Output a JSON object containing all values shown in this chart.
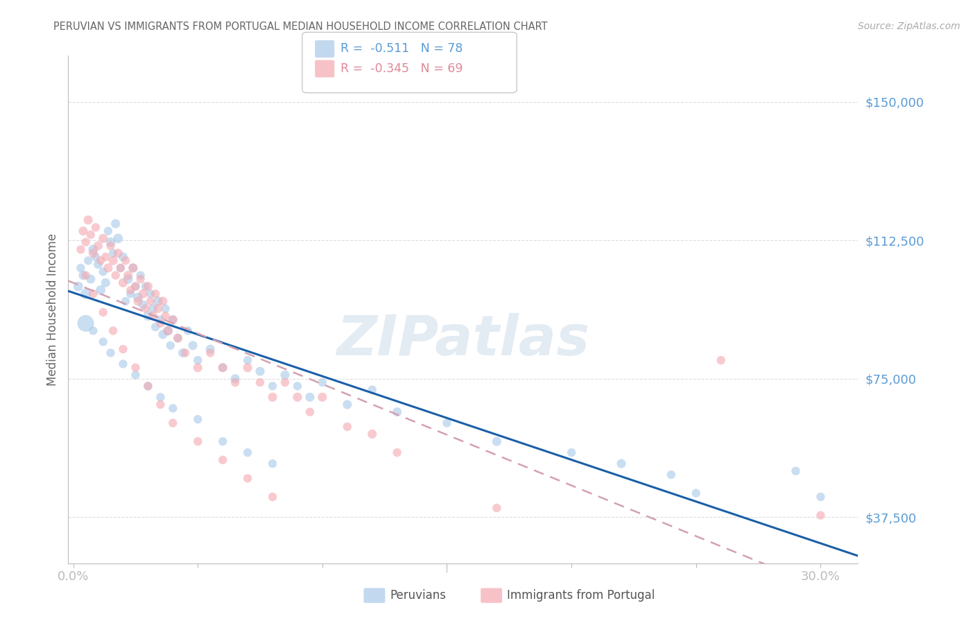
{
  "title": "PERUVIAN VS IMMIGRANTS FROM PORTUGAL MEDIAN HOUSEHOLD INCOME CORRELATION CHART",
  "source": "Source: ZipAtlas.com",
  "ylabel": "Median Household Income",
  "ytick_labels": [
    "$37,500",
    "$75,000",
    "$112,500",
    "$150,000"
  ],
  "ytick_values": [
    37500,
    75000,
    112500,
    150000
  ],
  "ymin": 25000,
  "ymax": 162500,
  "xmin": -0.002,
  "xmax": 0.315,
  "watermark": "ZIPatlas",
  "blue_color": "#a8c8e8",
  "pink_color": "#f4a8b0",
  "blue_line_color": "#1a5fa8",
  "pink_line_color": "#d4a0b0",
  "pink_line_dash": [
    6,
    4
  ],
  "axis_color": "#bbbbbb",
  "grid_color": "#dddddd",
  "label_color": "#5b9bd5",
  "title_color": "#666666",
  "source_color": "#aaaaaa",
  "peruvians_x": [
    0.002,
    0.003,
    0.004,
    0.005,
    0.006,
    0.007,
    0.008,
    0.009,
    0.01,
    0.011,
    0.012,
    0.013,
    0.014,
    0.015,
    0.016,
    0.017,
    0.018,
    0.019,
    0.02,
    0.021,
    0.022,
    0.023,
    0.024,
    0.025,
    0.026,
    0.027,
    0.028,
    0.029,
    0.03,
    0.031,
    0.032,
    0.033,
    0.034,
    0.035,
    0.036,
    0.037,
    0.038,
    0.039,
    0.04,
    0.042,
    0.044,
    0.046,
    0.048,
    0.05,
    0.055,
    0.06,
    0.065,
    0.07,
    0.075,
    0.08,
    0.085,
    0.09,
    0.095,
    0.1,
    0.11,
    0.12,
    0.13,
    0.15,
    0.17,
    0.2,
    0.22,
    0.24,
    0.005,
    0.008,
    0.012,
    0.015,
    0.02,
    0.025,
    0.03,
    0.035,
    0.04,
    0.05,
    0.06,
    0.07,
    0.08,
    0.29,
    0.25,
    0.3
  ],
  "peruvians_y": [
    100000,
    105000,
    103000,
    98000,
    107000,
    102000,
    110000,
    108000,
    106000,
    99000,
    104000,
    101000,
    115000,
    112000,
    109000,
    117000,
    113000,
    105000,
    108000,
    96000,
    102000,
    98000,
    105000,
    100000,
    97000,
    103000,
    95000,
    100000,
    92000,
    98000,
    94000,
    89000,
    96000,
    91000,
    87000,
    94000,
    88000,
    84000,
    91000,
    86000,
    82000,
    88000,
    84000,
    80000,
    83000,
    78000,
    75000,
    80000,
    77000,
    73000,
    76000,
    73000,
    70000,
    74000,
    68000,
    72000,
    66000,
    63000,
    58000,
    55000,
    52000,
    49000,
    90000,
    88000,
    85000,
    82000,
    79000,
    76000,
    73000,
    70000,
    67000,
    64000,
    58000,
    55000,
    52000,
    50000,
    44000,
    43000
  ],
  "peruvians_sizes": [
    100,
    80,
    90,
    120,
    80,
    90,
    100,
    80,
    90,
    100,
    80,
    90,
    80,
    100,
    80,
    90,
    100,
    80,
    90,
    80,
    100,
    80,
    90,
    80,
    100,
    80,
    90,
    80,
    100,
    80,
    90,
    80,
    100,
    80,
    90,
    80,
    100,
    80,
    90,
    80,
    90,
    80,
    90,
    80,
    90,
    80,
    90,
    80,
    90,
    80,
    90,
    80,
    90,
    80,
    90,
    80,
    90,
    80,
    90,
    80,
    90,
    80,
    300,
    80,
    80,
    80,
    80,
    80,
    80,
    80,
    80,
    80,
    80,
    80,
    80,
    80,
    80,
    80
  ],
  "portugal_x": [
    0.003,
    0.004,
    0.005,
    0.006,
    0.007,
    0.008,
    0.009,
    0.01,
    0.011,
    0.012,
    0.013,
    0.014,
    0.015,
    0.016,
    0.017,
    0.018,
    0.019,
    0.02,
    0.021,
    0.022,
    0.023,
    0.024,
    0.025,
    0.026,
    0.027,
    0.028,
    0.029,
    0.03,
    0.031,
    0.032,
    0.033,
    0.034,
    0.035,
    0.036,
    0.037,
    0.038,
    0.04,
    0.042,
    0.045,
    0.05,
    0.055,
    0.06,
    0.065,
    0.07,
    0.075,
    0.08,
    0.085,
    0.09,
    0.095,
    0.1,
    0.11,
    0.12,
    0.13,
    0.005,
    0.008,
    0.012,
    0.016,
    0.02,
    0.025,
    0.03,
    0.035,
    0.04,
    0.05,
    0.06,
    0.07,
    0.08,
    0.26,
    0.17,
    0.3
  ],
  "portugal_y": [
    110000,
    115000,
    112000,
    118000,
    114000,
    109000,
    116000,
    111000,
    107000,
    113000,
    108000,
    105000,
    111000,
    107000,
    103000,
    109000,
    105000,
    101000,
    107000,
    103000,
    99000,
    105000,
    100000,
    96000,
    102000,
    98000,
    94000,
    100000,
    96000,
    92000,
    98000,
    94000,
    90000,
    96000,
    92000,
    88000,
    91000,
    86000,
    82000,
    78000,
    82000,
    78000,
    74000,
    78000,
    74000,
    70000,
    74000,
    70000,
    66000,
    70000,
    62000,
    60000,
    55000,
    103000,
    98000,
    93000,
    88000,
    83000,
    78000,
    73000,
    68000,
    63000,
    58000,
    53000,
    48000,
    43000,
    80000,
    40000,
    38000
  ],
  "portugal_sizes": [
    80,
    90,
    80,
    90,
    80,
    90,
    80,
    90,
    80,
    90,
    80,
    90,
    80,
    90,
    80,
    90,
    80,
    90,
    80,
    90,
    80,
    90,
    80,
    90,
    80,
    90,
    80,
    90,
    80,
    90,
    80,
    90,
    80,
    90,
    80,
    90,
    80,
    90,
    80,
    90,
    80,
    90,
    80,
    90,
    80,
    90,
    80,
    90,
    80,
    90,
    80,
    90,
    80,
    80,
    80,
    80,
    80,
    80,
    80,
    80,
    80,
    80,
    80,
    80,
    80,
    80,
    80,
    80,
    80
  ]
}
